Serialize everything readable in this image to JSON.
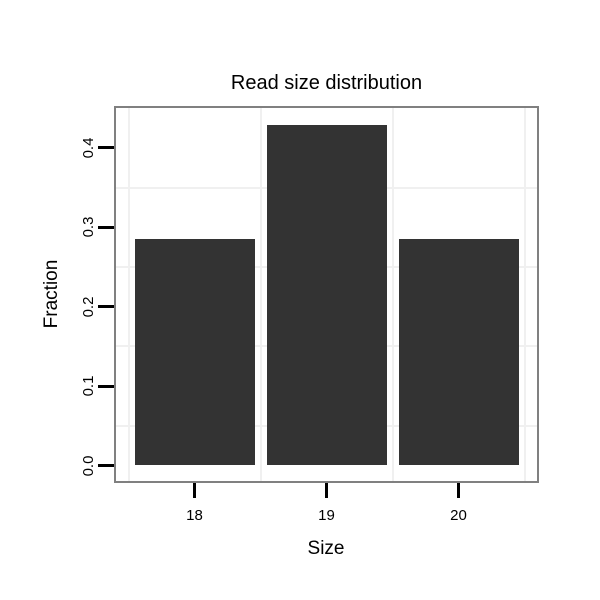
{
  "chart_data": {
    "type": "bar",
    "title": "Read size distribution",
    "xlabel": "Size",
    "ylabel": "Fraction",
    "categories": [
      "18",
      "19",
      "20"
    ],
    "values": [
      0.2857,
      0.4286,
      0.2857
    ],
    "yticks": [
      0.0,
      0.1,
      0.2,
      0.3,
      0.4
    ],
    "ytick_labels": [
      "0.0",
      "0.1",
      "0.2",
      "0.3",
      "0.4"
    ],
    "ylim": [
      -0.021,
      0.45
    ],
    "legend": "none",
    "grid": "faint minor gridlines: horizontal at 0.05 intervals, vertical at category boundaries",
    "colors": {
      "bar": "#333333",
      "panel_border": "#808080",
      "gridline": "#f0f0f0",
      "background": "#ffffff",
      "text": "#000000",
      "tick": "#000000"
    }
  }
}
